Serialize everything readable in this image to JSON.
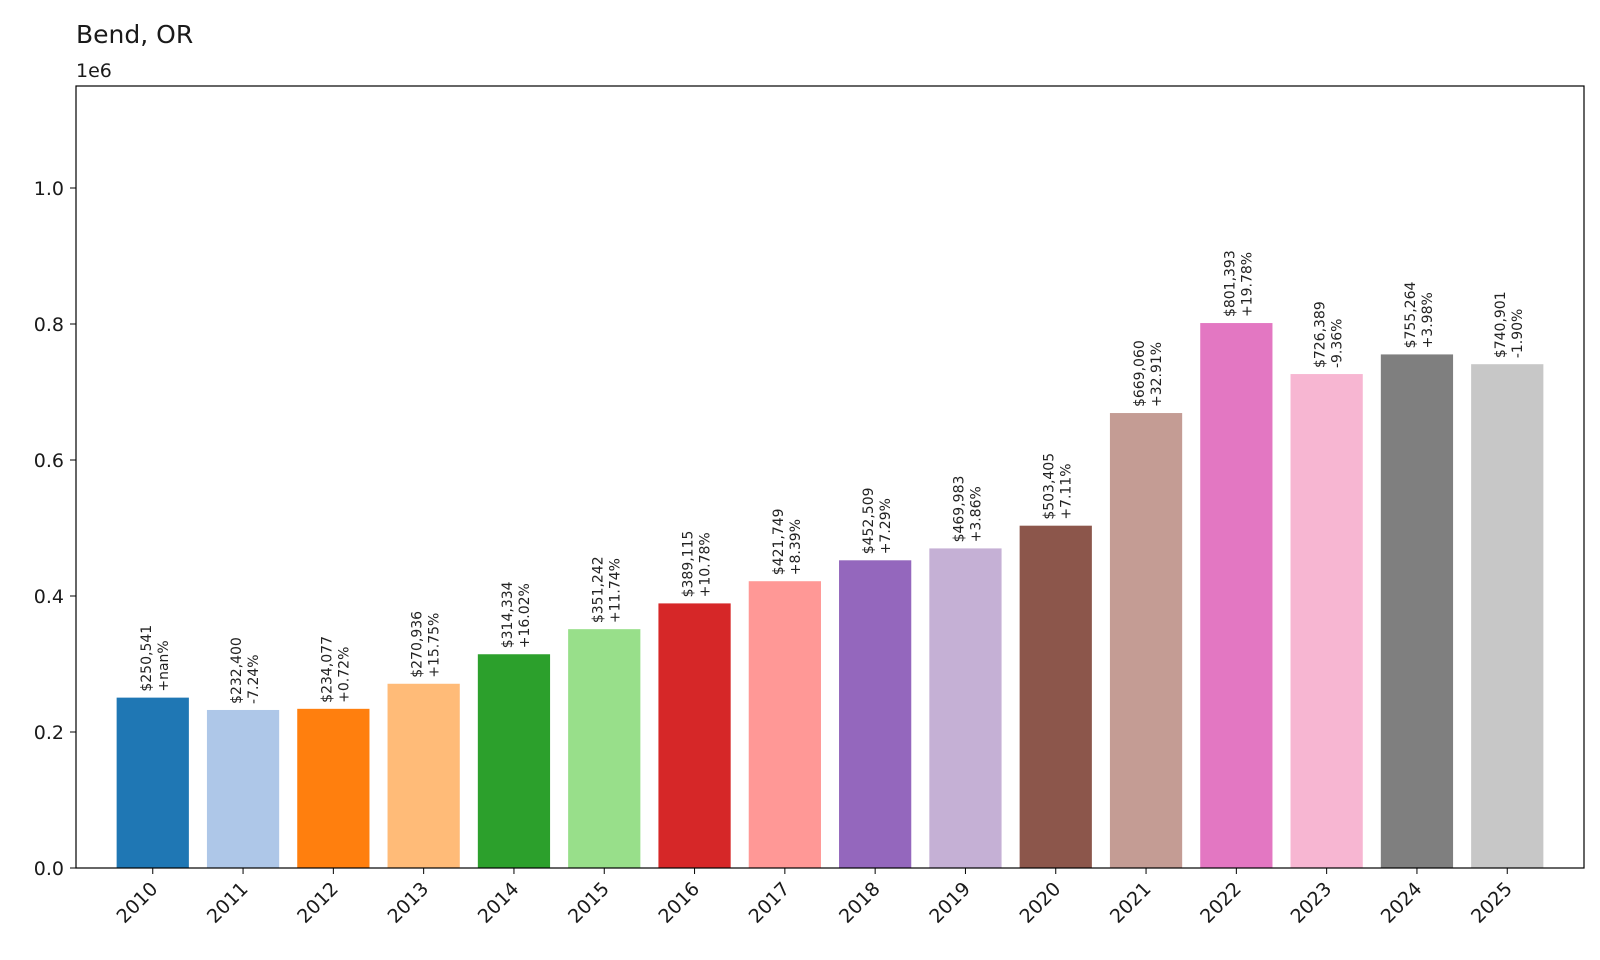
{
  "chart_data": {
    "type": "bar",
    "title": "Bend, OR",
    "xlabel": "",
    "ylabel": "",
    "offset_label": "1e6",
    "ylim": [
      0,
      1.15
    ],
    "yticks": [
      "0.0",
      "0.2",
      "0.4",
      "0.6",
      "0.8",
      "1.0"
    ],
    "ytick_values": [
      0,
      0.2,
      0.4,
      0.6,
      0.8,
      1.0
    ],
    "grid": false,
    "legend": "none",
    "categories": [
      "2010",
      "2011",
      "2012",
      "2013",
      "2014",
      "2015",
      "2016",
      "2017",
      "2018",
      "2019",
      "2020",
      "2021",
      "2022",
      "2023",
      "2024",
      "2025"
    ],
    "values": [
      250541,
      232400,
      234077,
      270936,
      314334,
      351242,
      389115,
      421749,
      452509,
      469983,
      503405,
      669060,
      801393,
      726389,
      755264,
      740901
    ],
    "value_labels": [
      "$250,541",
      "$232,400",
      "$234,077",
      "$270,936",
      "$314,334",
      "$351,242",
      "$389,115",
      "$421,749",
      "$452,509",
      "$469,983",
      "$503,405",
      "$669,060",
      "$801,393",
      "$726,389",
      "$755,264",
      "$740,901"
    ],
    "change_labels": [
      "+nan%",
      "-7.24%",
      "+0.72%",
      "+15.75%",
      "+16.02%",
      "+11.74%",
      "+10.78%",
      "+8.39%",
      "+7.29%",
      "+3.86%",
      "+7.11%",
      "+32.91%",
      "+19.78%",
      "-9.36%",
      "+3.98%",
      "-1.90%"
    ],
    "colors": [
      "#1f77b4",
      "#aec7e8",
      "#ff7f0e",
      "#ffbb78",
      "#2ca02c",
      "#98df8a",
      "#d62728",
      "#ff9896",
      "#9467bd",
      "#c5b0d5",
      "#8c564b",
      "#c49c94",
      "#e377c2",
      "#f7b6d2",
      "#7f7f7f",
      "#c7c7c7"
    ]
  }
}
